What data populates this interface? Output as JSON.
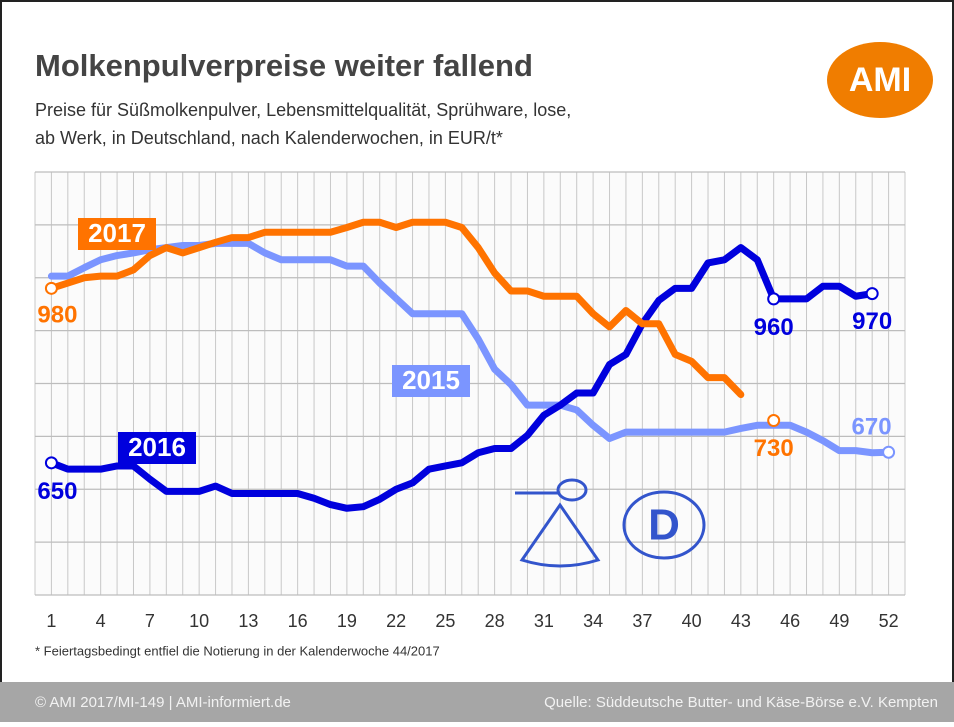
{
  "title": "Molkenpulverpreise weiter fallend",
  "subtitle": [
    "Preise für Süßmolkenpulver, Lebensmittelqualität, Sprühware, lose,",
    "ab Werk, in Deutschland, nach Kalenderwochen, in EUR/t*"
  ],
  "logo": "AMI",
  "footnote": "* Feiertagsbedingt entfiel die Notierung in der Kalenderwoche 44/2017",
  "footer": {
    "left": "© AMI 2017/MI-149 | AMI-informiert.de",
    "right": "Quelle: Süddeutsche Butter- und Käse-Börse e.V. Kempten"
  },
  "chart_data": {
    "type": "line",
    "x": [
      1,
      2,
      3,
      4,
      5,
      6,
      7,
      8,
      9,
      10,
      11,
      12,
      13,
      14,
      15,
      16,
      17,
      18,
      19,
      20,
      21,
      22,
      23,
      24,
      25,
      26,
      27,
      28,
      29,
      30,
      31,
      32,
      33,
      34,
      35,
      36,
      37,
      38,
      39,
      40,
      41,
      42,
      43,
      44,
      45,
      46,
      47,
      48,
      49,
      50,
      51,
      52
    ],
    "xlim": [
      0,
      53
    ],
    "xticks": [
      1,
      4,
      7,
      10,
      13,
      16,
      19,
      22,
      25,
      28,
      31,
      34,
      37,
      40,
      43,
      46,
      49,
      52
    ],
    "ylim": [
      400,
      1200
    ],
    "yticks": [
      400,
      500,
      600,
      700,
      800,
      900,
      1000,
      1100,
      1200
    ],
    "grid": true,
    "series": [
      {
        "name": "2015",
        "color": "#7b95ff",
        "values": [
          1003,
          1003,
          1019,
          1034,
          1042,
          1047,
          1053,
          1057,
          1061,
          1061,
          1065,
          1065,
          1065,
          1047,
          1034,
          1034,
          1034,
          1034,
          1022,
          1022,
          990,
          961,
          932,
          932,
          932,
          932,
          884,
          827,
          798,
          759,
          759,
          759,
          750,
          721,
          696,
          708,
          708,
          708,
          708,
          708,
          708,
          708,
          715,
          721,
          721,
          721,
          708,
          692,
          673,
          673,
          669,
          670
        ]
      },
      {
        "name": "2016",
        "color": "#0000dd",
        "values": [
          650,
          638,
          638,
          638,
          644,
          644,
          619,
          596,
          596,
          596,
          606,
          592,
          592,
          592,
          592,
          592,
          583,
          571,
          564,
          567,
          581,
          600,
          612,
          638,
          644,
          650,
          669,
          677,
          677,
          702,
          740,
          759,
          782,
          782,
          836,
          855,
          913,
          957,
          980,
          980,
          1028,
          1034,
          1057,
          1034,
          960,
          960,
          960,
          984,
          984,
          965,
          970,
          null
        ]
      },
      {
        "name": "2017",
        "color": "#ff7300",
        "values": [
          980,
          990,
          1000,
          1003,
          1003,
          1015,
          1042,
          1057,
          1047,
          1057,
          1067,
          1076,
          1076,
          1086,
          1086,
          1086,
          1086,
          1086,
          1095,
          1105,
          1105,
          1095,
          1105,
          1105,
          1105,
          1095,
          1057,
          1009,
          975,
          975,
          965,
          965,
          965,
          932,
          907,
          938,
          913,
          913,
          855,
          842,
          811,
          811,
          779,
          null,
          730,
          null,
          null,
          null,
          null,
          null,
          null,
          null
        ]
      }
    ]
  }
}
